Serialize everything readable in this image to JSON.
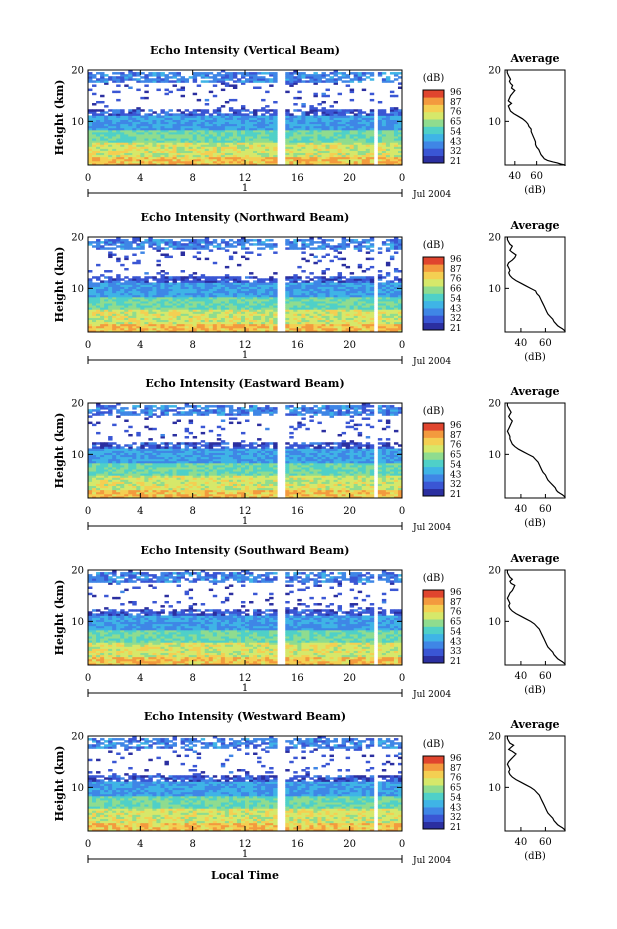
{
  "footer": {
    "xlabel": "Local Time"
  },
  "colors": {
    "colormap": [
      "#2b2fa0",
      "#3a56d4",
      "#3f86e6",
      "#3fb4e6",
      "#4fd0c8",
      "#8fdc8f",
      "#d6e86a",
      "#f4cf52",
      "#f39a3e",
      "#e0452e"
    ],
    "background": "#ffffff",
    "line": "#000000"
  },
  "chart_data": [
    {
      "type": "heatmap",
      "title": "Echo Intensity (Vertical Beam)",
      "ylabel": "Height (km)",
      "xlim": [
        0,
        24
      ],
      "ylim": [
        1.5,
        20
      ],
      "x_ticks": [
        "0",
        "4",
        "8",
        "12",
        "16",
        "20",
        "0"
      ],
      "y_ticks": [
        "20",
        "10"
      ],
      "date_label": "Jul 2004",
      "day_label": "1",
      "colorbar": {
        "unit": "(dB)",
        "ticks": [
          "96",
          "87",
          "76",
          "65",
          "54",
          "43",
          "32",
          "21"
        ]
      },
      "gaps_hours": [
        [
          14.5,
          15.0
        ],
        [
          21.8,
          22.1
        ]
      ],
      "profile": {
        "title": "Average",
        "xlabel": "(dB)",
        "xticks": [
          "40",
          "60"
        ],
        "yticks": [
          "20",
          "10"
        ],
        "x": [
          33,
          33,
          34,
          35,
          36,
          35,
          36,
          38,
          37,
          40,
          38,
          36,
          35,
          34,
          37,
          34,
          35,
          36,
          39,
          43,
          47,
          50,
          52,
          53,
          55,
          55,
          56,
          57,
          58,
          59,
          59,
          60,
          62,
          63,
          64,
          66,
          67,
          70,
          75,
          79,
          82,
          86,
          86
        ],
        "y": [
          20,
          19.5,
          19,
          18.6,
          18.2,
          17.8,
          17.4,
          17,
          16.5,
          16,
          15.5,
          15,
          14.5,
          14,
          13.5,
          13,
          12.5,
          12,
          11.5,
          11,
          10.5,
          10,
          9.5,
          9,
          8.5,
          8,
          7.5,
          7,
          6.5,
          6,
          5.5,
          5,
          4.5,
          4,
          3.5,
          3,
          2.7,
          2.4,
          2.1,
          1.9,
          1.7,
          1.5,
          1.3
        ]
      }
    },
    {
      "type": "heatmap",
      "title": "Echo Intensity (Northward Beam)",
      "ylabel": "Height (km)",
      "xlim": [
        0,
        24
      ],
      "ylim": [
        1.5,
        20
      ],
      "x_ticks": [
        "0",
        "4",
        "8",
        "12",
        "16",
        "20",
        "0"
      ],
      "y_ticks": [
        "20",
        "10"
      ],
      "date_label": "Jul 2004",
      "day_label": "1",
      "colorbar": {
        "unit": "(dB)",
        "ticks": [
          "96",
          "87",
          "76",
          "66",
          "54",
          "43",
          "32",
          "21"
        ]
      },
      "gaps_hours": [
        [
          14.5,
          15.0
        ],
        [
          21.8,
          22.1
        ]
      ],
      "profile": {
        "title": "Average",
        "xlabel": "(dB)",
        "xticks": [
          "40",
          "60"
        ],
        "yticks": [
          "20",
          "10"
        ],
        "x": [
          29,
          29,
          30,
          31,
          33,
          32,
          31,
          33,
          36,
          35,
          33,
          30,
          29,
          30,
          31,
          30,
          31,
          33,
          36,
          40,
          44,
          48,
          52,
          53,
          55,
          56,
          57,
          58,
          59,
          60,
          61,
          62,
          64,
          66,
          67,
          69,
          70,
          72,
          74,
          75,
          76,
          76
        ],
        "y": [
          20,
          19.5,
          19,
          18.6,
          18.2,
          17.8,
          17.4,
          17,
          16.5,
          16,
          15.5,
          15,
          14.5,
          14,
          13.5,
          13,
          12.5,
          12,
          11.5,
          11,
          10.5,
          10,
          9.5,
          9,
          8.5,
          8,
          7.5,
          7,
          6.5,
          6,
          5.5,
          5,
          4.5,
          4,
          3.5,
          3,
          2.7,
          2.4,
          2.1,
          1.9,
          1.7,
          1.5
        ]
      }
    },
    {
      "type": "heatmap",
      "title": "Echo Intensity (Eastward Beam)",
      "ylabel": "Height (km)",
      "xlim": [
        0,
        24
      ],
      "ylim": [
        1.5,
        20
      ],
      "x_ticks": [
        "0",
        "4",
        "8",
        "12",
        "16",
        "20",
        "0"
      ],
      "y_ticks": [
        "20",
        "10"
      ],
      "date_label": "Jul 2004",
      "day_label": "1",
      "colorbar": {
        "unit": "(dB)",
        "ticks": [
          "96",
          "87",
          "76",
          "65",
          "54",
          "43",
          "32",
          "21"
        ]
      },
      "gaps_hours": [
        [
          14.5,
          15.0
        ],
        [
          21.8,
          22.1
        ]
      ],
      "profile": {
        "title": "Average",
        "xlabel": "(dB)",
        "xticks": [
          "40",
          "60"
        ],
        "yticks": [
          "20",
          "10"
        ],
        "x": [
          29,
          29,
          30,
          31,
          32,
          31,
          30,
          31,
          33,
          32,
          31,
          30,
          29,
          30,
          31,
          31,
          32,
          33,
          35,
          38,
          42,
          46,
          50,
          52,
          54,
          55,
          56,
          57,
          58,
          60,
          61,
          62,
          64,
          66,
          68,
          69,
          70,
          72,
          74,
          75,
          76,
          76
        ],
        "y": [
          20,
          19.5,
          19,
          18.6,
          18.2,
          17.8,
          17.4,
          17,
          16.5,
          16,
          15.5,
          15,
          14.5,
          14,
          13.5,
          13,
          12.5,
          12,
          11.5,
          11,
          10.5,
          10,
          9.5,
          9,
          8.5,
          8,
          7.5,
          7,
          6.5,
          6,
          5.5,
          5,
          4.5,
          4,
          3.5,
          3,
          2.7,
          2.4,
          2.1,
          1.9,
          1.7,
          1.5
        ]
      }
    },
    {
      "type": "heatmap",
      "title": "Echo Intensity (Southward Beam)",
      "ylabel": "Height (km)",
      "xlim": [
        0,
        24
      ],
      "ylim": [
        1.5,
        20
      ],
      "x_ticks": [
        "0",
        "4",
        "8",
        "12",
        "16",
        "20",
        "0"
      ],
      "y_ticks": [
        "20",
        "10"
      ],
      "date_label": "Jul 2004",
      "day_label": "1",
      "colorbar": {
        "unit": "(dB)",
        "ticks": [
          "96",
          "87",
          "76",
          "65",
          "54",
          "43",
          "33",
          "21"
        ]
      },
      "gaps_hours": [
        [
          14.5,
          15.0
        ],
        [
          21.8,
          22.1
        ]
      ],
      "profile": {
        "title": "Average",
        "xlabel": "(dB)",
        "xticks": [
          "40",
          "60"
        ],
        "yticks": [
          "20",
          "10"
        ],
        "x": [
          29,
          29,
          30,
          31,
          33,
          31,
          32,
          35,
          34,
          33,
          31,
          30,
          29,
          30,
          31,
          30,
          31,
          33,
          36,
          40,
          44,
          48,
          51,
          53,
          55,
          56,
          57,
          58,
          59,
          60,
          61,
          62,
          64,
          66,
          67,
          69,
          70,
          72,
          74,
          75,
          76,
          76
        ],
        "y": [
          20,
          19.5,
          19,
          18.6,
          18.2,
          17.8,
          17.4,
          17,
          16.5,
          16,
          15.5,
          15,
          14.5,
          14,
          13.5,
          13,
          12.5,
          12,
          11.5,
          11,
          10.5,
          10,
          9.5,
          9,
          8.5,
          8,
          7.5,
          7,
          6.5,
          6,
          5.5,
          5,
          4.5,
          4,
          3.5,
          3,
          2.7,
          2.4,
          2.1,
          1.9,
          1.7,
          1.5
        ]
      }
    },
    {
      "type": "heatmap",
      "title": "Echo Intensity (Westward Beam)",
      "ylabel": "Height (km)",
      "xlim": [
        0,
        24
      ],
      "ylim": [
        1.5,
        20
      ],
      "x_ticks": [
        "0",
        "4",
        "8",
        "12",
        "16",
        "20",
        "0"
      ],
      "y_ticks": [
        "20",
        "10"
      ],
      "date_label": "Jul 2004",
      "day_label": "1",
      "colorbar": {
        "unit": "(dB)",
        "ticks": [
          "96",
          "87",
          "76",
          "65",
          "54",
          "43",
          "32",
          "21"
        ]
      },
      "gaps_hours": [
        [
          14.5,
          15.0
        ],
        [
          21.8,
          22.1
        ]
      ],
      "profile": {
        "title": "Average",
        "xlabel": "(dB)",
        "xticks": [
          "40",
          "60"
        ],
        "yticks": [
          "20",
          "10"
        ],
        "x": [
          29,
          29,
          30,
          31,
          34,
          32,
          30,
          33,
          36,
          34,
          32,
          30,
          29,
          30,
          31,
          30,
          31,
          33,
          36,
          40,
          44,
          48,
          51,
          53,
          55,
          56,
          57,
          58,
          59,
          60,
          61,
          62,
          64,
          66,
          67,
          69,
          70,
          72,
          74,
          75,
          76,
          76
        ],
        "y": [
          20,
          19.5,
          19,
          18.6,
          18.2,
          17.8,
          17.4,
          17,
          16.5,
          16,
          15.5,
          15,
          14.5,
          14,
          13.5,
          13,
          12.5,
          12,
          11.5,
          11,
          10.5,
          10,
          9.5,
          9,
          8.5,
          8,
          7.5,
          7,
          6.5,
          6,
          5.5,
          5,
          4.5,
          4,
          3.5,
          3,
          2.7,
          2.4,
          2.1,
          1.9,
          1.7,
          1.5
        ]
      }
    }
  ]
}
